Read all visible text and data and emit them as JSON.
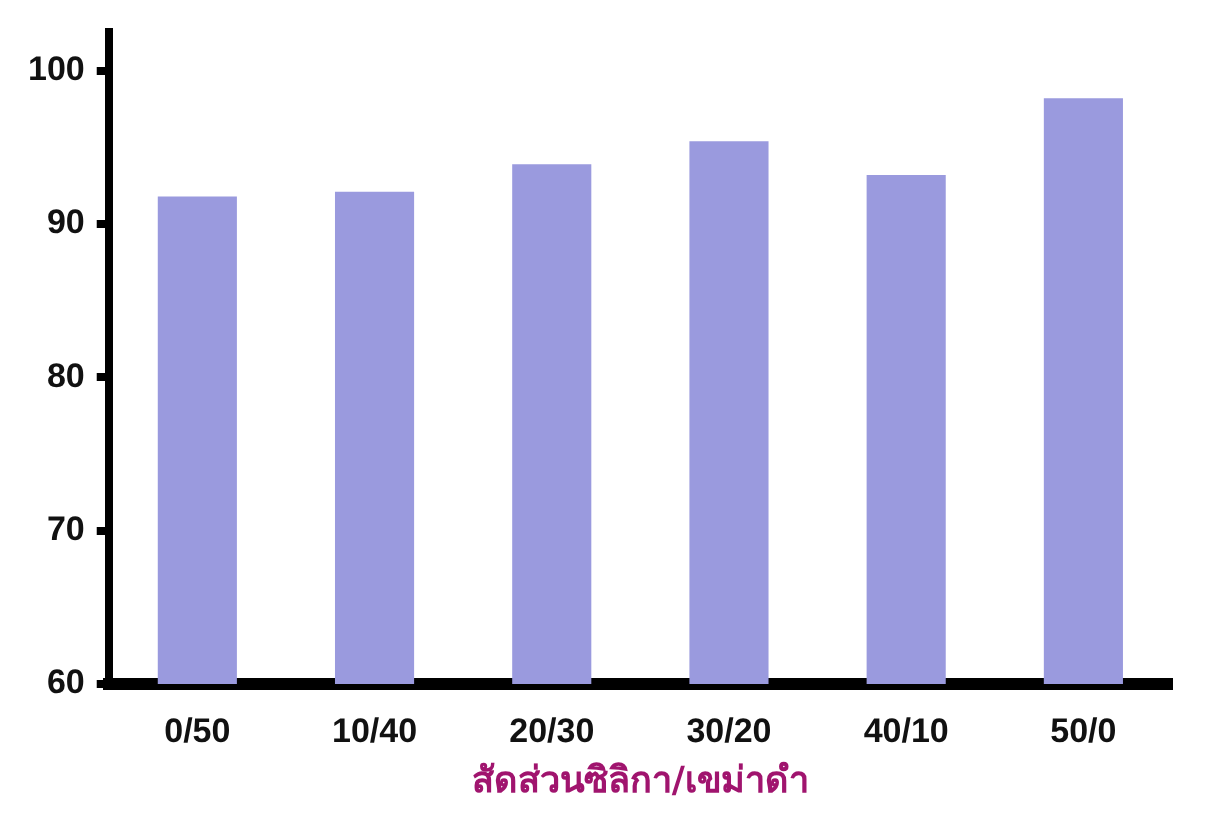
{
  "chart_data": {
    "type": "bar",
    "xlabel": "สัดส่วนซิลิกา/เขม่าดำ",
    "categories": [
      "0/50",
      "10/40",
      "20/30",
      "30/20",
      "40/10",
      "50/0"
    ],
    "values": [
      91.8,
      92.1,
      93.9,
      95.4,
      93.2,
      98.2
    ],
    "color": "#9a9ade",
    "ylim": [
      60,
      102.5
    ],
    "yticks": [
      60,
      70,
      80,
      90,
      100
    ],
    "grid": false,
    "legend": false
  }
}
